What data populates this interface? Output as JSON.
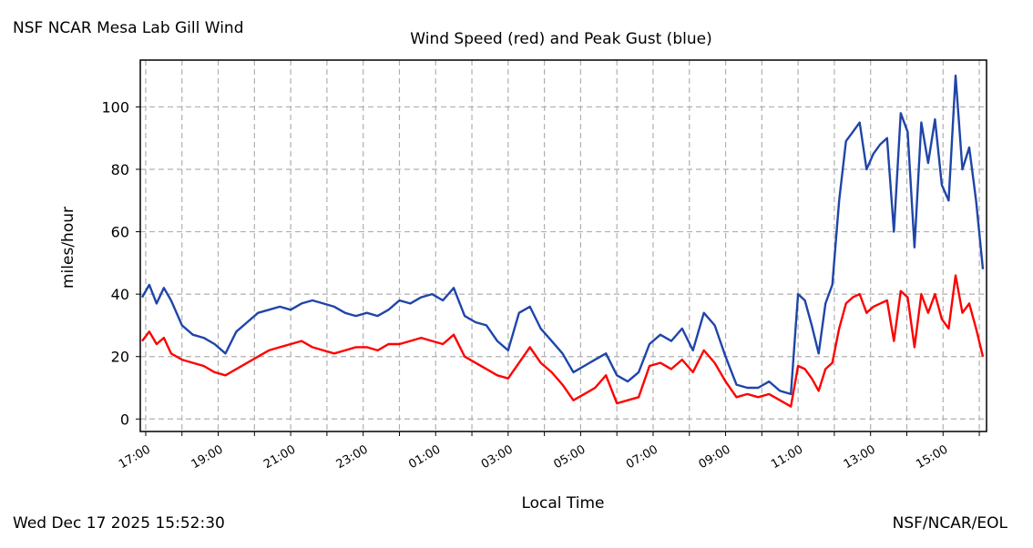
{
  "header": {
    "site_title": "NSF NCAR Mesa Lab Gill Wind"
  },
  "footer": {
    "timestamp": "Wed Dec 17 2025 15:52:30",
    "credit": "NSF/NCAR/EOL"
  },
  "colors": {
    "wind_speed": "#ff0000",
    "peak_gust": "#1f45a8",
    "grid": "#b0b0b0"
  },
  "chart_data": {
    "type": "line",
    "title": "Wind Speed (red) and Peak Gust (blue)",
    "xlabel": "Local Time",
    "ylabel": "miles/hour",
    "x_tick_labels": [
      "17:00",
      "19:00",
      "21:00",
      "23:00",
      "01:00",
      "03:00",
      "05:00",
      "07:00",
      "09:00",
      "11:00",
      "13:00",
      "15:00"
    ],
    "x_tick_hours": [
      0,
      2,
      4,
      6,
      8,
      10,
      12,
      14,
      16,
      18,
      20,
      22
    ],
    "xlim_hours": [
      -0.15,
      23.2
    ],
    "y_ticks": [
      0,
      20,
      40,
      60,
      80,
      100
    ],
    "ylim": [
      -4,
      115
    ],
    "grid": true,
    "x_hours": [
      -0.1,
      0.1,
      0.3,
      0.5,
      0.7,
      1.0,
      1.3,
      1.6,
      1.9,
      2.2,
      2.5,
      2.8,
      3.1,
      3.4,
      3.7,
      4.0,
      4.3,
      4.6,
      4.9,
      5.2,
      5.5,
      5.8,
      6.1,
      6.4,
      6.7,
      7.0,
      7.3,
      7.6,
      7.9,
      8.2,
      8.5,
      8.8,
      9.1,
      9.4,
      9.7,
      10.0,
      10.3,
      10.6,
      10.9,
      11.2,
      11.5,
      11.8,
      12.1,
      12.4,
      12.7,
      13.0,
      13.3,
      13.6,
      13.9,
      14.2,
      14.5,
      14.8,
      15.1,
      15.4,
      15.7,
      16.0,
      16.3,
      16.6,
      16.9,
      17.2,
      17.5,
      17.8,
      18.1,
      18.4,
      18.7,
      19.0,
      19.3,
      19.6,
      19.9,
      20.2,
      20.5,
      20.8,
      21.1,
      21.4,
      21.7,
      22.0,
      22.3,
      22.6,
      22.9,
      23.1
    ],
    "series": [
      {
        "color": "#1f45a8",
        "values": [
          39,
          43,
          37,
          42,
          38,
          30,
          27,
          26,
          24,
          21,
          28,
          31,
          34,
          35,
          36,
          35,
          37,
          38,
          37,
          36,
          34,
          33,
          34,
          33,
          35,
          38,
          37,
          39,
          40,
          38,
          42,
          33,
          31,
          30,
          25,
          22,
          34,
          36,
          29,
          25,
          21,
          15,
          17,
          19,
          21,
          14,
          12,
          15,
          24,
          27,
          25,
          29,
          22,
          34,
          30,
          20,
          11,
          10,
          10,
          12,
          9,
          8,
          14,
          13,
          12,
          10,
          12,
          14,
          15,
          12,
          17,
          18,
          34,
          25,
          36,
          30,
          22,
          20,
          28,
          35
        ],
        "values_2": [
          40,
          38,
          30,
          21,
          37,
          43,
          70,
          89,
          92,
          95,
          80,
          85,
          88,
          90,
          60,
          98,
          92,
          55,
          95,
          82,
          96,
          75,
          70,
          110,
          80,
          87,
          70,
          48
        ]
      },
      {
        "name": "",
        "color": "#ff0000",
        "values": [
          25,
          28,
          24,
          26,
          21,
          19,
          18,
          17,
          15,
          14,
          16,
          18,
          20,
          22,
          23,
          24,
          25,
          23,
          22,
          21,
          22,
          23,
          23,
          22,
          24,
          24,
          25,
          26,
          25,
          24,
          27,
          20,
          18,
          16,
          14,
          13,
          18,
          23,
          18,
          15,
          11,
          6,
          8,
          10,
          14,
          5,
          6,
          7,
          17,
          18,
          16,
          19,
          15,
          22,
          18,
          12,
          7,
          8,
          7,
          8,
          6,
          4,
          7,
          6,
          6,
          5,
          7,
          8,
          7,
          6,
          9,
          9,
          14,
          9,
          11,
          7,
          6,
          5,
          8,
          12
        ]
      }
    ]
  }
}
